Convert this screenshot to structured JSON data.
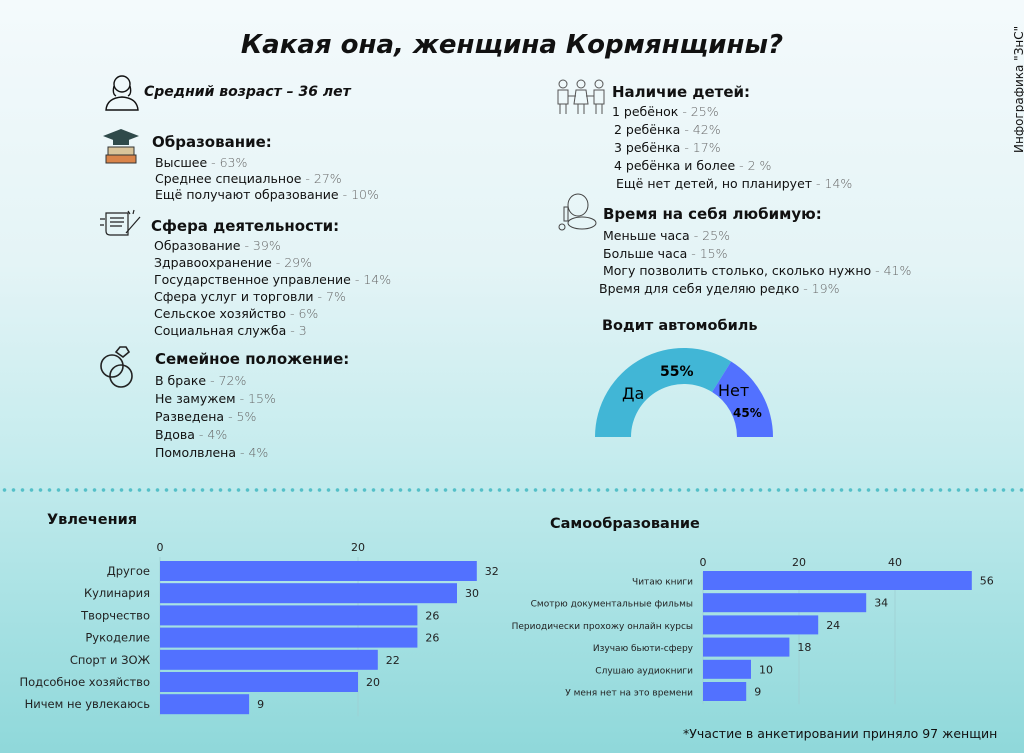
{
  "title": "Какая она, женщина Кормянщины?",
  "side_label": "Инфографика \"ЗнС\"",
  "age": "Средний возраст – 36 лет",
  "education": {
    "title": "Образование:",
    "items": [
      {
        "label": "Высшее",
        "value": "- 63%"
      },
      {
        "label": "Среднее специальное",
        "value": "- 27%"
      },
      {
        "label": "Ещё получают образование",
        "value": "- 10%"
      }
    ]
  },
  "sphere": {
    "title": "Сфера деятельности:",
    "items": [
      {
        "label": "Образование",
        "value": "- 39%"
      },
      {
        "label": "Здравоохранение",
        "value": "- 29%"
      },
      {
        "label": "Государственное управление",
        "value": "- 14%"
      },
      {
        "label": "Сфера услуг и торговли",
        "value": "- 7%"
      },
      {
        "label": "Сельское хозяйство",
        "value": "- 6%"
      },
      {
        "label": "Социальная служба",
        "value": "- 3"
      }
    ]
  },
  "family": {
    "title": "Семейное положение:",
    "items": [
      {
        "label": "В браке",
        "value": "- 72%"
      },
      {
        "label": "Не замужем",
        "value": "- 15%"
      },
      {
        "label": "Разведена",
        "value": "- 5%"
      },
      {
        "label": "Вдова",
        "value": "- 4%"
      },
      {
        "label": "Помолвлена",
        "value": "- 4%"
      }
    ]
  },
  "children": {
    "title": "Наличие детей:",
    "items": [
      {
        "label": "1 ребёнок",
        "value": "- 25%"
      },
      {
        "label": "2 ребёнка",
        "value": "- 42%"
      },
      {
        "label": "3 ребёнка",
        "value": "- 17%"
      },
      {
        "label": "4 ребёнка и более",
        "value": "- 2 %"
      },
      {
        "label": "Ещё нет детей, но планирует",
        "value": "- 14%"
      }
    ]
  },
  "selftime": {
    "title": "Время на себя любимую:",
    "items": [
      {
        "label": "Меньше часа",
        "value": "- 25%"
      },
      {
        "label": "Больше часа",
        "value": "- 15%"
      },
      {
        "label": "Могу позволить столько, сколько нужно",
        "value": "- 41%"
      },
      {
        "label": "Время для себя уделяю редко",
        "value": "- 19%"
      }
    ]
  },
  "footnote": "*Участие в анкетировании приняло 97 женщин",
  "colors": {
    "bar": "#5271ff",
    "yes": "#41b6d6",
    "no": "#5271ff"
  },
  "chart_data": [
    {
      "type": "pie",
      "title": "Водит автомобиль",
      "categories": [
        "Да",
        "Нет"
      ],
      "values": [
        55,
        45
      ],
      "labels": [
        "55%",
        "45%"
      ]
    },
    {
      "type": "bar",
      "orientation": "horizontal",
      "title": "Увлечения",
      "categories": [
        "Другое",
        "Кулинария",
        "Творчество",
        "Рукоделие",
        "Спорт и ЗОЖ",
        "Подсобное хозяйство",
        "Ничем не увлекаюсь"
      ],
      "values": [
        32,
        30,
        26,
        26,
        22,
        20,
        9
      ],
      "xticks": [
        "0",
        "20"
      ],
      "xlim": [
        0,
        32
      ]
    },
    {
      "type": "bar",
      "orientation": "horizontal",
      "title": "Самообразование",
      "categories": [
        "Читаю книги",
        "Смотрю документальные фильмы",
        "Периодически прохожу онлайн курсы",
        "Изучаю бьюти-сферу",
        "Слушаю аудиокниги",
        "У меня нет на это времени"
      ],
      "values": [
        56,
        34,
        24,
        18,
        10,
        9
      ],
      "xticks": [
        "0",
        "20",
        "40"
      ],
      "xlim": [
        0,
        56
      ]
    }
  ]
}
